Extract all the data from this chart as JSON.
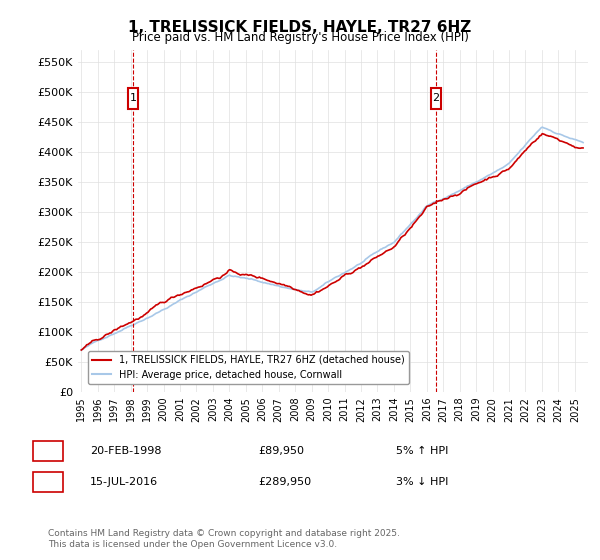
{
  "title": "1, TRELISSICK FIELDS, HAYLE, TR27 6HZ",
  "subtitle": "Price paid vs. HM Land Registry's House Price Index (HPI)",
  "legend_entry1": "1, TRELISSICK FIELDS, HAYLE, TR27 6HZ (detached house)",
  "legend_entry2": "HPI: Average price, detached house, Cornwall",
  "sale1_date": "20-FEB-1998",
  "sale1_price": 89950,
  "sale1_label": "5% ↑ HPI",
  "sale2_date": "15-JUL-2016",
  "sale2_price": 289950,
  "sale2_label": "3% ↓ HPI",
  "footer": "Contains HM Land Registry data © Crown copyright and database right 2025.\nThis data is licensed under the Open Government Licence v3.0.",
  "hpi_color": "#a8c8e8",
  "price_color": "#cc0000",
  "sale_vline_color": "#cc0000",
  "ylim": [
    0,
    570000
  ],
  "yticks": [
    0,
    50000,
    100000,
    150000,
    200000,
    250000,
    300000,
    350000,
    400000,
    450000,
    500000,
    550000
  ],
  "background_color": "#ffffff",
  "grid_color": "#e0e0e0"
}
